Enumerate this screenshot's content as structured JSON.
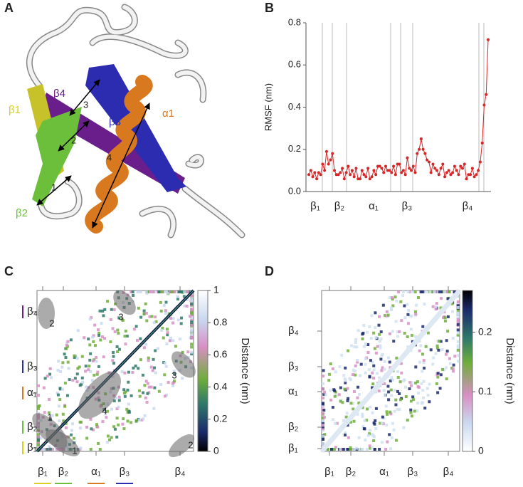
{
  "illustration": {
    "panel": "A",
    "labels": [
      "β1",
      "β4",
      "β3",
      "α1",
      "β2"
    ],
    "distances": [
      "1",
      "2",
      "3",
      "4"
    ]
  },
  "chart_data": [
    {
      "type": "line",
      "panel": "B",
      "y_label": "RMSF (nm)",
      "color": "#d62728",
      "values": [
        0.08,
        0.1,
        0.07,
        0.09,
        0.06,
        0.09,
        0.08,
        0.13,
        0.1,
        0.19,
        0.13,
        0.15,
        0.18,
        0.1,
        0.08,
        0.08,
        0.09,
        0.11,
        0.06,
        0.09,
        0.12,
        0.08,
        0.1,
        0.07,
        0.11,
        0.06,
        0.06,
        0.1,
        0.08,
        0.07,
        0.11,
        0.06,
        0.07,
        0.1,
        0.08,
        0.12,
        0.12,
        0.11,
        0.09,
        0.12,
        0.1,
        0.1,
        0.09,
        0.12,
        0.08,
        0.13,
        0.13,
        0.09,
        0.1,
        0.08,
        0.16,
        0.11,
        0.1,
        0.12,
        0.09,
        0.18,
        0.2,
        0.25,
        0.2,
        0.18,
        0.15,
        0.14,
        0.09,
        0.13,
        0.11,
        0.1,
        0.08,
        0.11,
        0.13,
        0.07,
        0.09,
        0.1,
        0.08,
        0.09,
        0.12,
        0.1,
        0.08,
        0.12,
        0.11,
        0.13,
        0.06,
        0.08,
        0.08,
        0.11,
        0.07,
        0.08,
        0.1,
        0.14,
        0.23,
        0.41,
        0.46,
        0.72
      ],
      "ylim": [
        0,
        0.8
      ],
      "yticks": [
        {
          "value": 0,
          "label": "0.0"
        },
        0.2,
        0.4,
        0.6,
        0.8
      ],
      "regions": [
        "β₁",
        "β₂",
        "α₁",
        "β₃",
        "β₄"
      ]
    },
    {
      "type": "heatmap",
      "panel": "C",
      "colorbar_label": "Distance (nm)",
      "clim": [
        0,
        1
      ],
      "cticks": [
        0,
        0.2,
        0.4,
        0.6,
        0.8,
        1
      ],
      "row_labels": [
        "β₄",
        "β₃",
        "α₁",
        "β₂",
        "β₁"
      ],
      "col_labels": [
        "β₁",
        "β₂",
        "α₁",
        "β₃",
        "β₄"
      ],
      "annotations": [
        "2",
        "3",
        "3",
        "4",
        "1",
        "1",
        "2"
      ]
    },
    {
      "type": "heatmap",
      "panel": "D",
      "colorbar_label": "Distance (nm)",
      "clim": [
        0,
        0.27
      ],
      "cticks": [
        0,
        0.1,
        0.2
      ],
      "row_labels": [
        "β₄",
        "β₃",
        "α₁",
        "β₂",
        "β₁"
      ],
      "col_labels": [
        "β₁",
        "β₂",
        "α₁",
        "β₃",
        "β₄"
      ]
    }
  ]
}
